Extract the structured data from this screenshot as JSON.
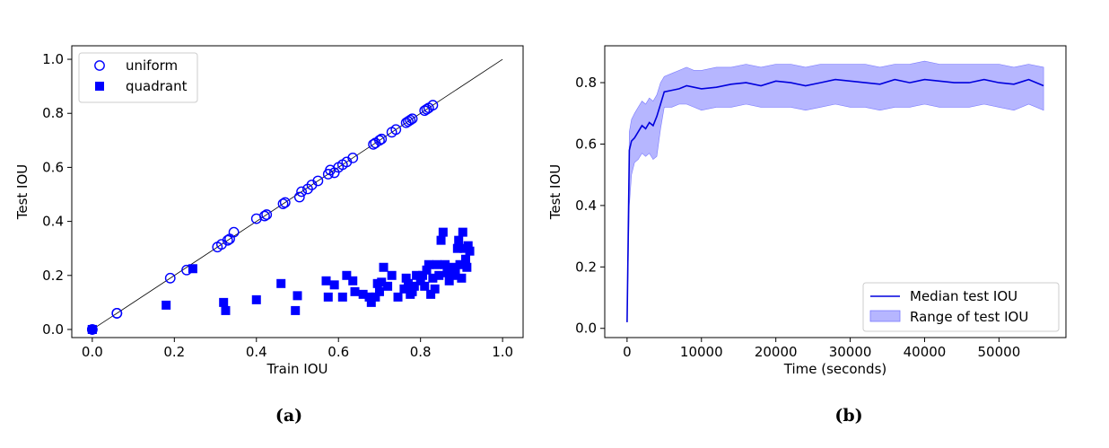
{
  "chart_data": [
    {
      "type": "scatter",
      "xlabel": "Train IOU",
      "ylabel": "Test IOU",
      "xlim": [
        -0.05,
        1.05
      ],
      "ylim": [
        -0.03,
        1.05
      ],
      "xticks": [
        0.0,
        0.2,
        0.4,
        0.6,
        0.8,
        1.0
      ],
      "yticks": [
        0.0,
        0.2,
        0.4,
        0.6,
        0.8,
        1.0
      ],
      "tick_labels": [
        "0.0",
        "0.2",
        "0.4",
        "0.6",
        "0.8",
        "1.0"
      ],
      "legend_position": "top-left",
      "reference_line": [
        [
          0,
          0
        ],
        [
          1,
          1
        ]
      ],
      "colors": {
        "series": "#0000ff",
        "line": "#000000"
      },
      "series": [
        {
          "name": "uniform",
          "marker": "open-circle",
          "points": [
            [
              0.0,
              0.0
            ],
            [
              0.0,
              0.0
            ],
            [
              0.06,
              0.06
            ],
            [
              0.06,
              0.06
            ],
            [
              0.19,
              0.19
            ],
            [
              0.23,
              0.22
            ],
            [
              0.305,
              0.305
            ],
            [
              0.315,
              0.315
            ],
            [
              0.33,
              0.33
            ],
            [
              0.335,
              0.335
            ],
            [
              0.345,
              0.36
            ],
            [
              0.4,
              0.41
            ],
            [
              0.42,
              0.42
            ],
            [
              0.425,
              0.425
            ],
            [
              0.465,
              0.465
            ],
            [
              0.47,
              0.47
            ],
            [
              0.505,
              0.49
            ],
            [
              0.51,
              0.51
            ],
            [
              0.525,
              0.52
            ],
            [
              0.535,
              0.535
            ],
            [
              0.55,
              0.55
            ],
            [
              0.575,
              0.575
            ],
            [
              0.58,
              0.59
            ],
            [
              0.59,
              0.58
            ],
            [
              0.6,
              0.6
            ],
            [
              0.61,
              0.61
            ],
            [
              0.62,
              0.62
            ],
            [
              0.635,
              0.635
            ],
            [
              0.685,
              0.685
            ],
            [
              0.69,
              0.69
            ],
            [
              0.7,
              0.7
            ],
            [
              0.705,
              0.705
            ],
            [
              0.73,
              0.73
            ],
            [
              0.74,
              0.74
            ],
            [
              0.765,
              0.765
            ],
            [
              0.77,
              0.77
            ],
            [
              0.775,
              0.775
            ],
            [
              0.78,
              0.78
            ],
            [
              0.81,
              0.81
            ],
            [
              0.815,
              0.815
            ],
            [
              0.82,
              0.82
            ],
            [
              0.83,
              0.83
            ]
          ]
        },
        {
          "name": "quadrant",
          "marker": "filled-square",
          "points": [
            [
              0.0,
              0.0
            ],
            [
              0.0,
              0.0
            ],
            [
              0.18,
              0.09
            ],
            [
              0.245,
              0.225
            ],
            [
              0.32,
              0.1
            ],
            [
              0.325,
              0.07
            ],
            [
              0.4,
              0.11
            ],
            [
              0.46,
              0.17
            ],
            [
              0.495,
              0.07
            ],
            [
              0.5,
              0.125
            ],
            [
              0.57,
              0.18
            ],
            [
              0.575,
              0.12
            ],
            [
              0.59,
              0.165
            ],
            [
              0.61,
              0.12
            ],
            [
              0.62,
              0.2
            ],
            [
              0.635,
              0.18
            ],
            [
              0.64,
              0.14
            ],
            [
              0.66,
              0.13
            ],
            [
              0.675,
              0.12
            ],
            [
              0.68,
              0.1
            ],
            [
              0.69,
              0.12
            ],
            [
              0.695,
              0.17
            ],
            [
              0.7,
              0.14
            ],
            [
              0.705,
              0.175
            ],
            [
              0.71,
              0.23
            ],
            [
              0.72,
              0.16
            ],
            [
              0.73,
              0.2
            ],
            [
              0.745,
              0.12
            ],
            [
              0.76,
              0.15
            ],
            [
              0.765,
              0.19
            ],
            [
              0.77,
              0.17
            ],
            [
              0.775,
              0.13
            ],
            [
              0.78,
              0.14
            ],
            [
              0.785,
              0.16
            ],
            [
              0.79,
              0.2
            ],
            [
              0.8,
              0.18
            ],
            [
              0.805,
              0.2
            ],
            [
              0.81,
              0.16
            ],
            [
              0.815,
              0.22
            ],
            [
              0.82,
              0.24
            ],
            [
              0.825,
              0.13
            ],
            [
              0.83,
              0.19
            ],
            [
              0.835,
              0.15
            ],
            [
              0.84,
              0.24
            ],
            [
              0.845,
              0.2
            ],
            [
              0.85,
              0.33
            ],
            [
              0.855,
              0.36
            ],
            [
              0.86,
              0.24
            ],
            [
              0.865,
              0.21
            ],
            [
              0.87,
              0.18
            ],
            [
              0.875,
              0.23
            ],
            [
              0.88,
              0.2
            ],
            [
              0.885,
              0.22
            ],
            [
              0.89,
              0.3
            ],
            [
              0.893,
              0.33
            ],
            [
              0.896,
              0.24
            ],
            [
              0.9,
              0.19
            ],
            [
              0.903,
              0.36
            ],
            [
              0.906,
              0.3
            ],
            [
              0.91,
              0.26
            ],
            [
              0.913,
              0.23
            ],
            [
              0.916,
              0.31
            ],
            [
              0.92,
              0.29
            ]
          ]
        }
      ]
    },
    {
      "type": "area",
      "xlabel": "Time (seconds)",
      "ylabel": "Test IOU",
      "xlim": [
        -3000,
        59000
      ],
      "ylim": [
        -0.03,
        0.92
      ],
      "xticks": [
        0,
        10000,
        20000,
        30000,
        40000,
        50000
      ],
      "xtick_labels": [
        "0",
        "10000",
        "20000",
        "30000",
        "40000",
        "50000"
      ],
      "yticks": [
        0.0,
        0.2,
        0.4,
        0.6,
        0.8
      ],
      "ytick_labels": [
        "0.0",
        "0.2",
        "0.4",
        "0.6",
        "0.8"
      ],
      "legend_position": "bottom-right",
      "colors": {
        "median": "#0000dd",
        "range": "#7a7aff"
      },
      "series": [
        {
          "name": "Median test IOU",
          "kind": "line"
        },
        {
          "name": "Range of test IOU",
          "kind": "band"
        }
      ],
      "x": [
        0,
        300,
        600,
        1000,
        1500,
        2000,
        2500,
        3000,
        3500,
        4000,
        4500,
        5000,
        6000,
        7000,
        8000,
        9000,
        10000,
        12000,
        14000,
        16000,
        18000,
        20000,
        22000,
        24000,
        26000,
        28000,
        30000,
        32000,
        34000,
        36000,
        38000,
        40000,
        42000,
        44000,
        46000,
        48000,
        50000,
        52000,
        54000,
        56000
      ],
      "median": [
        0.02,
        0.58,
        0.61,
        0.62,
        0.64,
        0.66,
        0.65,
        0.67,
        0.66,
        0.69,
        0.73,
        0.77,
        0.775,
        0.78,
        0.79,
        0.785,
        0.78,
        0.785,
        0.795,
        0.8,
        0.79,
        0.805,
        0.8,
        0.79,
        0.8,
        0.81,
        0.805,
        0.8,
        0.795,
        0.81,
        0.8,
        0.81,
        0.805,
        0.8,
        0.8,
        0.81,
        0.8,
        0.795,
        0.81,
        0.79
      ],
      "low": [
        0.02,
        0.4,
        0.5,
        0.54,
        0.55,
        0.57,
        0.56,
        0.57,
        0.55,
        0.56,
        0.65,
        0.72,
        0.72,
        0.73,
        0.73,
        0.72,
        0.71,
        0.72,
        0.72,
        0.73,
        0.72,
        0.72,
        0.72,
        0.71,
        0.72,
        0.73,
        0.72,
        0.72,
        0.71,
        0.72,
        0.72,
        0.73,
        0.72,
        0.72,
        0.72,
        0.73,
        0.72,
        0.71,
        0.73,
        0.71
      ],
      "high": [
        0.02,
        0.64,
        0.68,
        0.7,
        0.72,
        0.74,
        0.73,
        0.75,
        0.74,
        0.76,
        0.8,
        0.82,
        0.83,
        0.84,
        0.85,
        0.84,
        0.84,
        0.85,
        0.85,
        0.86,
        0.85,
        0.86,
        0.86,
        0.85,
        0.86,
        0.86,
        0.86,
        0.86,
        0.85,
        0.86,
        0.86,
        0.87,
        0.86,
        0.86,
        0.86,
        0.86,
        0.86,
        0.85,
        0.86,
        0.85
      ]
    }
  ],
  "captions": {
    "a": "(a)",
    "b": "(b)"
  }
}
